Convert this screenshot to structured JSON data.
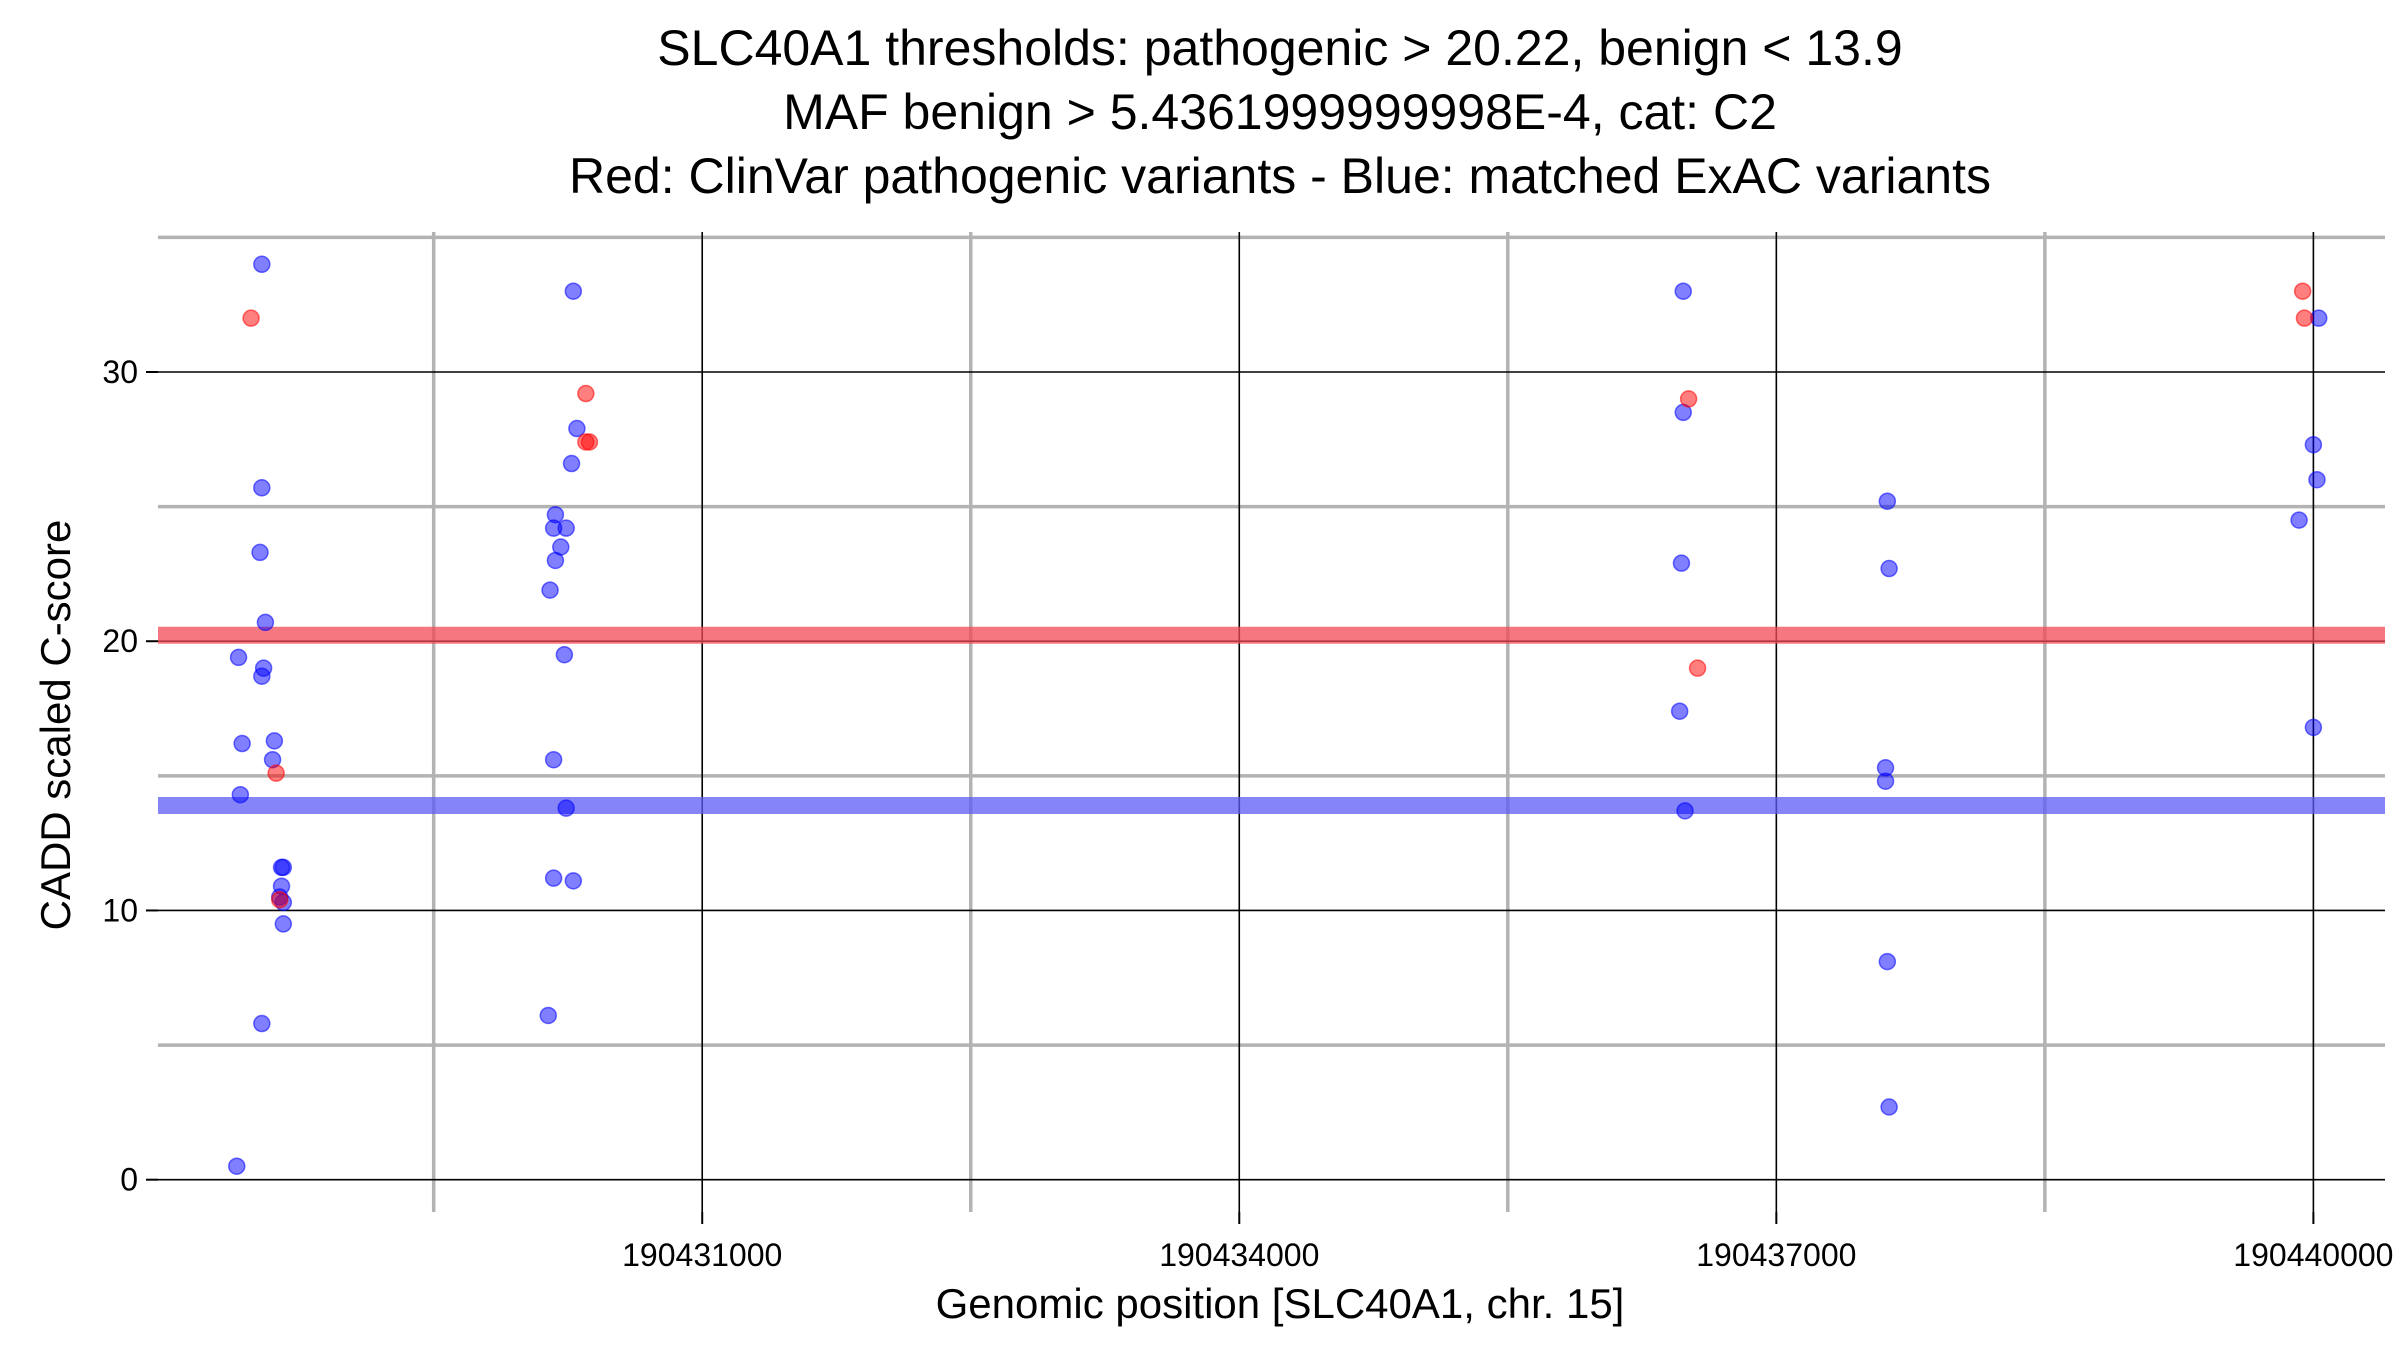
{
  "chart_data": {
    "type": "scatter",
    "title": [
      "SLC40A1 thresholds: pathogenic > 20.22, benign < 13.9",
      "MAF benign > 5.4361999999998E-4, cat: C2",
      "Red: ClinVar pathogenic variants - Blue: matched ExAC variants"
    ],
    "xlabel": "Genomic position [SLC40A1, chr. 15]",
    "ylabel": "CADD scaled C-score",
    "xlim": [
      190427960,
      190440400
    ],
    "ylim": [
      -1.2,
      35.2
    ],
    "x_ticks": [
      190431000,
      190434000,
      190437000,
      190440000
    ],
    "x_tick_labels": [
      "190431000",
      "190434000",
      "190437000",
      "190440000"
    ],
    "x_minor_ticks": [
      190429500,
      190432500,
      190435500,
      190438500
    ],
    "y_ticks": [
      0,
      10,
      20,
      30
    ],
    "y_tick_labels": [
      "0",
      "10",
      "20",
      "30"
    ],
    "y_minor_ticks": [
      5,
      15,
      25,
      35
    ],
    "grid": true,
    "thresholds": [
      {
        "name": "pathogenic",
        "value": 20.22,
        "color": "#f24b55"
      },
      {
        "name": "benign",
        "value": 13.9,
        "color": "#5c5cf6"
      }
    ],
    "colors": {
      "pathogenic": "#ff0000",
      "benign": "#0000ff",
      "major_grid": "#000000",
      "minor_grid": "#b3b3b3"
    },
    "series": [
      {
        "key": "benign",
        "color": "#0000ff",
        "points": [
          {
            "x": 190428540,
            "y": 34.0
          },
          {
            "x": 190428540,
            "y": 25.7
          },
          {
            "x": 190428530,
            "y": 23.3
          },
          {
            "x": 190428560,
            "y": 20.7
          },
          {
            "x": 190428410,
            "y": 19.4
          },
          {
            "x": 190428550,
            "y": 19.0
          },
          {
            "x": 190428540,
            "y": 18.7
          },
          {
            "x": 190428430,
            "y": 16.2
          },
          {
            "x": 190428610,
            "y": 16.3
          },
          {
            "x": 190428600,
            "y": 15.6
          },
          {
            "x": 190428420,
            "y": 14.3
          },
          {
            "x": 190428660,
            "y": 11.6
          },
          {
            "x": 190428650,
            "y": 11.6
          },
          {
            "x": 190428650,
            "y": 10.9
          },
          {
            "x": 190428640,
            "y": 10.5
          },
          {
            "x": 190428660,
            "y": 10.3
          },
          {
            "x": 190428660,
            "y": 9.5
          },
          {
            "x": 190428540,
            "y": 5.8
          },
          {
            "x": 190428400,
            "y": 0.5
          },
          {
            "x": 190430280,
            "y": 33.0
          },
          {
            "x": 190430300,
            "y": 27.9
          },
          {
            "x": 190430270,
            "y": 26.6
          },
          {
            "x": 190430180,
            "y": 24.7
          },
          {
            "x": 190430170,
            "y": 24.2
          },
          {
            "x": 190430240,
            "y": 24.2
          },
          {
            "x": 190430210,
            "y": 23.5
          },
          {
            "x": 190430180,
            "y": 23.0
          },
          {
            "x": 190430150,
            "y": 21.9
          },
          {
            "x": 190430230,
            "y": 19.5
          },
          {
            "x": 190430170,
            "y": 15.6
          },
          {
            "x": 190430240,
            "y": 13.8
          },
          {
            "x": 190430170,
            "y": 11.2
          },
          {
            "x": 190430280,
            "y": 11.1
          },
          {
            "x": 190430140,
            "y": 6.1
          },
          {
            "x": 190436480,
            "y": 33.0
          },
          {
            "x": 190436480,
            "y": 28.5
          },
          {
            "x": 190436470,
            "y": 22.9
          },
          {
            "x": 190436460,
            "y": 17.4
          },
          {
            "x": 190436490,
            "y": 13.7
          },
          {
            "x": 190437620,
            "y": 25.2
          },
          {
            "x": 190437630,
            "y": 22.7
          },
          {
            "x": 190437610,
            "y": 15.3
          },
          {
            "x": 190437610,
            "y": 14.8
          },
          {
            "x": 190437620,
            "y": 8.1
          },
          {
            "x": 190437630,
            "y": 2.7
          },
          {
            "x": 190440030,
            "y": 32.0
          },
          {
            "x": 190440000,
            "y": 27.3
          },
          {
            "x": 190440020,
            "y": 26.0
          },
          {
            "x": 190439920,
            "y": 24.5
          },
          {
            "x": 190440000,
            "y": 16.8
          }
        ]
      },
      {
        "key": "pathogenic",
        "color": "#ff0000",
        "points": [
          {
            "x": 190428480,
            "y": 32.0
          },
          {
            "x": 190428620,
            "y": 15.1
          },
          {
            "x": 190428640,
            "y": 10.4
          },
          {
            "x": 190430350,
            "y": 29.2
          },
          {
            "x": 190430350,
            "y": 27.4
          },
          {
            "x": 190430370,
            "y": 27.4
          },
          {
            "x": 190436510,
            "y": 29.0
          },
          {
            "x": 190436560,
            "y": 19.0
          },
          {
            "x": 190439940,
            "y": 33.0
          },
          {
            "x": 190439950,
            "y": 32.0
          }
        ]
      }
    ]
  }
}
